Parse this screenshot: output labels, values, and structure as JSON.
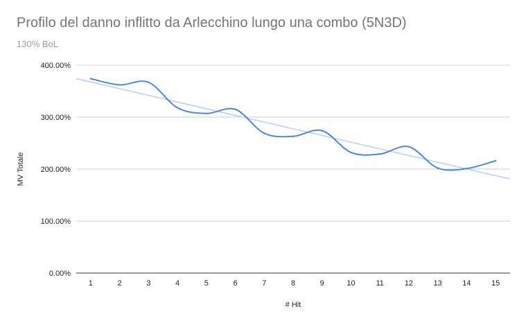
{
  "chart_data": {
    "type": "line",
    "title": "Profilo del danno inflitto da Arlecchino lungo una combo (5N3D)",
    "subtitle": "130% BoL",
    "xlabel": "# Hit",
    "ylabel": "MV Totale",
    "x": [
      1,
      2,
      3,
      4,
      5,
      6,
      7,
      8,
      9,
      10,
      11,
      12,
      13,
      14,
      15
    ],
    "ylim": [
      0,
      400
    ],
    "yticks": [
      0,
      100,
      200,
      300,
      400
    ],
    "ytick_labels": [
      "0.00%",
      "100.00%",
      "200.00%",
      "300.00%",
      "400.00%"
    ],
    "series": [
      {
        "values": [
          374,
          362,
          367,
          318,
          307,
          315,
          269,
          263,
          274,
          232,
          229,
          243,
          202,
          201,
          216
        ],
        "color": "#4a86e8",
        "smooth": true
      }
    ],
    "trendline": {
      "type": "linear",
      "color": "#b5cdf5",
      "start": [
        0.5,
        374
      ],
      "end": [
        15.5,
        181
      ]
    },
    "grid": true,
    "legend": "none"
  }
}
